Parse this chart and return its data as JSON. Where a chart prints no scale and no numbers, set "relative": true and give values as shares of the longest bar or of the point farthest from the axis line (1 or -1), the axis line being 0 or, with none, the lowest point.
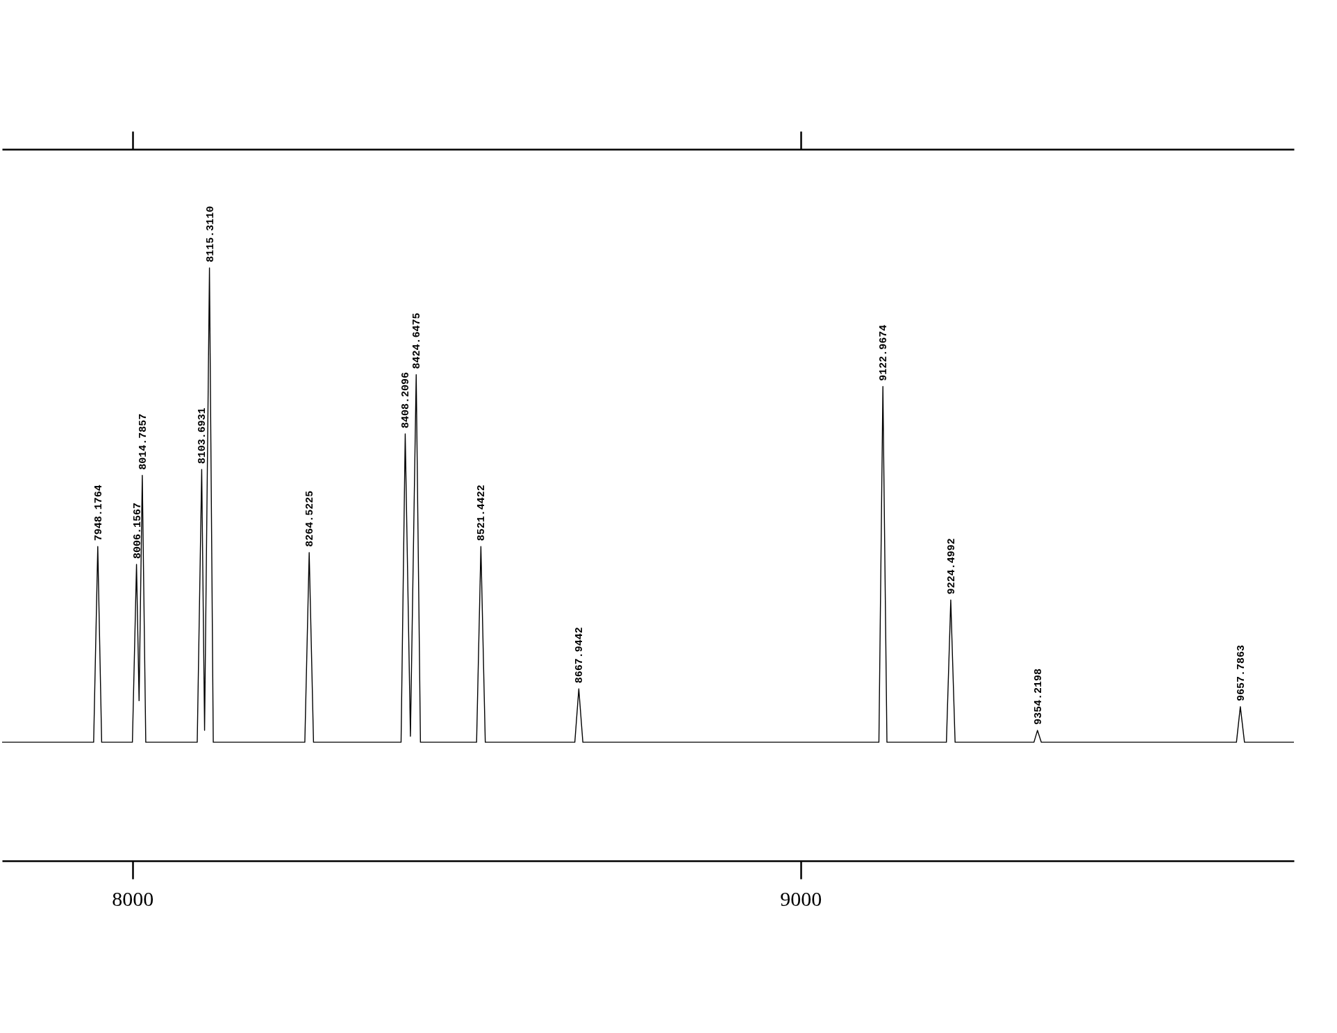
{
  "chart_data": {
    "type": "line",
    "relative": true,
    "xlim": [
      7805,
      9738
    ],
    "xticks": [
      8000,
      9000
    ],
    "tick_labels": "x",
    "grid": false,
    "marker": "none",
    "line_style": "solid",
    "series": [
      {
        "color": "#000000",
        "x": [
          7805,
          7942,
          7948.1764,
          7954,
          8000,
          8006.1567,
          8010,
          8014.7857,
          8020,
          8097,
          8103.6931,
          8108,
          8115.311,
          8121,
          8258,
          8264.5225,
          8271,
          8402,
          8408.2096,
          8416,
          8424.6475,
          8431,
          8515,
          8521.4422,
          8528,
          8662,
          8667.9442,
          8674,
          9117,
          9122.9674,
          9129,
          9218,
          9224.4992,
          9231,
          9349,
          9354.2198,
          9360,
          9652,
          9657.7863,
          9664,
          9738
        ],
        "values": [
          0.2,
          0.2,
          0.53,
          0.2,
          0.2,
          0.5,
          0.27,
          0.65,
          0.2,
          0.2,
          0.66,
          0.22,
          1,
          0.2,
          0.2,
          0.52,
          0.2,
          0.2,
          0.72,
          0.21,
          0.82,
          0.2,
          0.2,
          0.53,
          0.2,
          0.2,
          0.29,
          0.2,
          0.2,
          0.8,
          0.2,
          0.2,
          0.44,
          0.2,
          0.2,
          0.22,
          0.2,
          0.2,
          0.26,
          0.2,
          0.2
        ]
      }
    ],
    "annotations": [
      {
        "text": "7948.1764",
        "x": 7948.1764,
        "y": 0.53
      },
      {
        "text": "8006.1567",
        "x": 8006.1567,
        "y": 0.5
      },
      {
        "text": "8014.7857",
        "x": 8014.7857,
        "y": 0.65
      },
      {
        "text": "8103.6931",
        "x": 8103.6931,
        "y": 0.66
      },
      {
        "text": "8115.3110",
        "x": 8115.311,
        "y": 1
      },
      {
        "text": "8264.5225",
        "x": 8264.5225,
        "y": 0.52
      },
      {
        "text": "8408.2096",
        "x": 8408.2096,
        "y": 0.72
      },
      {
        "text": "8424.6475",
        "x": 8424.6475,
        "y": 0.82
      },
      {
        "text": "8521.4422",
        "x": 8521.4422,
        "y": 0.53
      },
      {
        "text": "8667.9442",
        "x": 8667.9442,
        "y": 0.29
      },
      {
        "text": "9122.9674",
        "x": 9122.9674,
        "y": 0.8
      },
      {
        "text": "9224.4992",
        "x": 9224.4992,
        "y": 0.44
      },
      {
        "text": "9354.2198",
        "x": 9354.2198,
        "y": 0.22
      },
      {
        "text": "9657.7863",
        "x": 9657.7863,
        "y": 0.26
      }
    ]
  }
}
